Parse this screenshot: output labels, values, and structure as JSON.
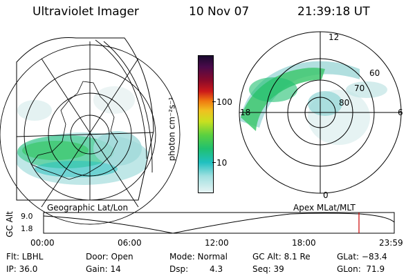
{
  "header": {
    "title": "Ultraviolet Imager",
    "date": "10 Nov 07",
    "time": "21:39:18 UT"
  },
  "left_panel": {
    "caption": "Geographic Lat/Lon"
  },
  "right_panel": {
    "caption": "Apex MLat/MLT",
    "mlt_labels": {
      "top": "12",
      "left": "18",
      "right": "6",
      "bottom": "0"
    },
    "lat_labels": [
      "60",
      "70",
      "80"
    ]
  },
  "colorbar": {
    "unit_label": "photon cm⁻²s⁻¹",
    "ticks": [
      "100",
      "10"
    ],
    "colors": [
      "#1a0a2e",
      "#4a0a4a",
      "#8a0a2a",
      "#cc1a1a",
      "#f07a10",
      "#f0c020",
      "#c8e020",
      "#5ad040",
      "#20c070",
      "#20c0c0",
      "#a0e0e0",
      "#e8f4f4"
    ]
  },
  "timeline": {
    "axis_label": "GC Alt",
    "y_ticks": [
      "9.0",
      "1.8"
    ],
    "x_ticks": [
      "00:00",
      "06:00",
      "12:00",
      "18:00",
      "23:59"
    ],
    "marker_color": "#cc0000"
  },
  "status": {
    "flt": "Flt: LBHL",
    "ip": "IP: 36.0",
    "door": "Door: Open",
    "gain": "Gain: 14",
    "mode": "Mode: Normal",
    "dsp_label": "Dsp:",
    "dsp_value": "4.3",
    "gcalt": "GC Alt: 8.1 Re",
    "seq": "Seq: 39",
    "glat": "GLat: −83.4",
    "glon": "GLon:  71.9"
  }
}
